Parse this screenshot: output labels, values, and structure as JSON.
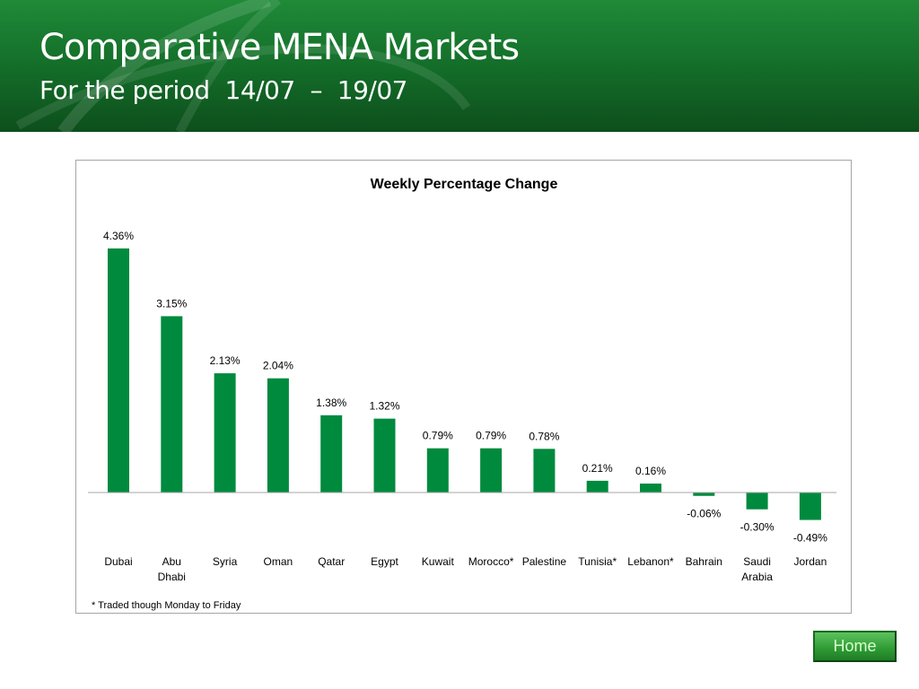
{
  "header": {
    "title": "Comparative MENA Markets",
    "subtitle": "For the period  14/07  –  19/07"
  },
  "chart_data": {
    "type": "bar",
    "title": "Weekly Percentage Change",
    "categories": [
      "Dubai",
      "Abu\nDhabi",
      "Syria",
      "Oman",
      "Qatar",
      "Egypt",
      "Kuwait",
      "Morocco*",
      "Palestine",
      "Tunisia*",
      "Lebanon*",
      "Bahrain",
      "Saudi\nArabia",
      "Jordan"
    ],
    "values": [
      4.36,
      3.15,
      2.13,
      2.04,
      1.38,
      1.32,
      0.79,
      0.79,
      0.78,
      0.21,
      0.16,
      -0.06,
      -0.3,
      -0.49
    ],
    "data_labels": [
      "4.36%",
      "3.15%",
      "2.13%",
      "2.04%",
      "1.38%",
      "1.32%",
      "0.79%",
      "0.79%",
      "0.78%",
      "0.21%",
      "0.16%",
      "-0.06%",
      "-0.30%",
      "-0.49%"
    ],
    "unit": "%",
    "xlabel": "",
    "ylabel": "",
    "grid": false,
    "footnote": "* Traded though Monday to Friday",
    "bar_color": "#008a3e"
  },
  "nav": {
    "home_label": "Home"
  }
}
